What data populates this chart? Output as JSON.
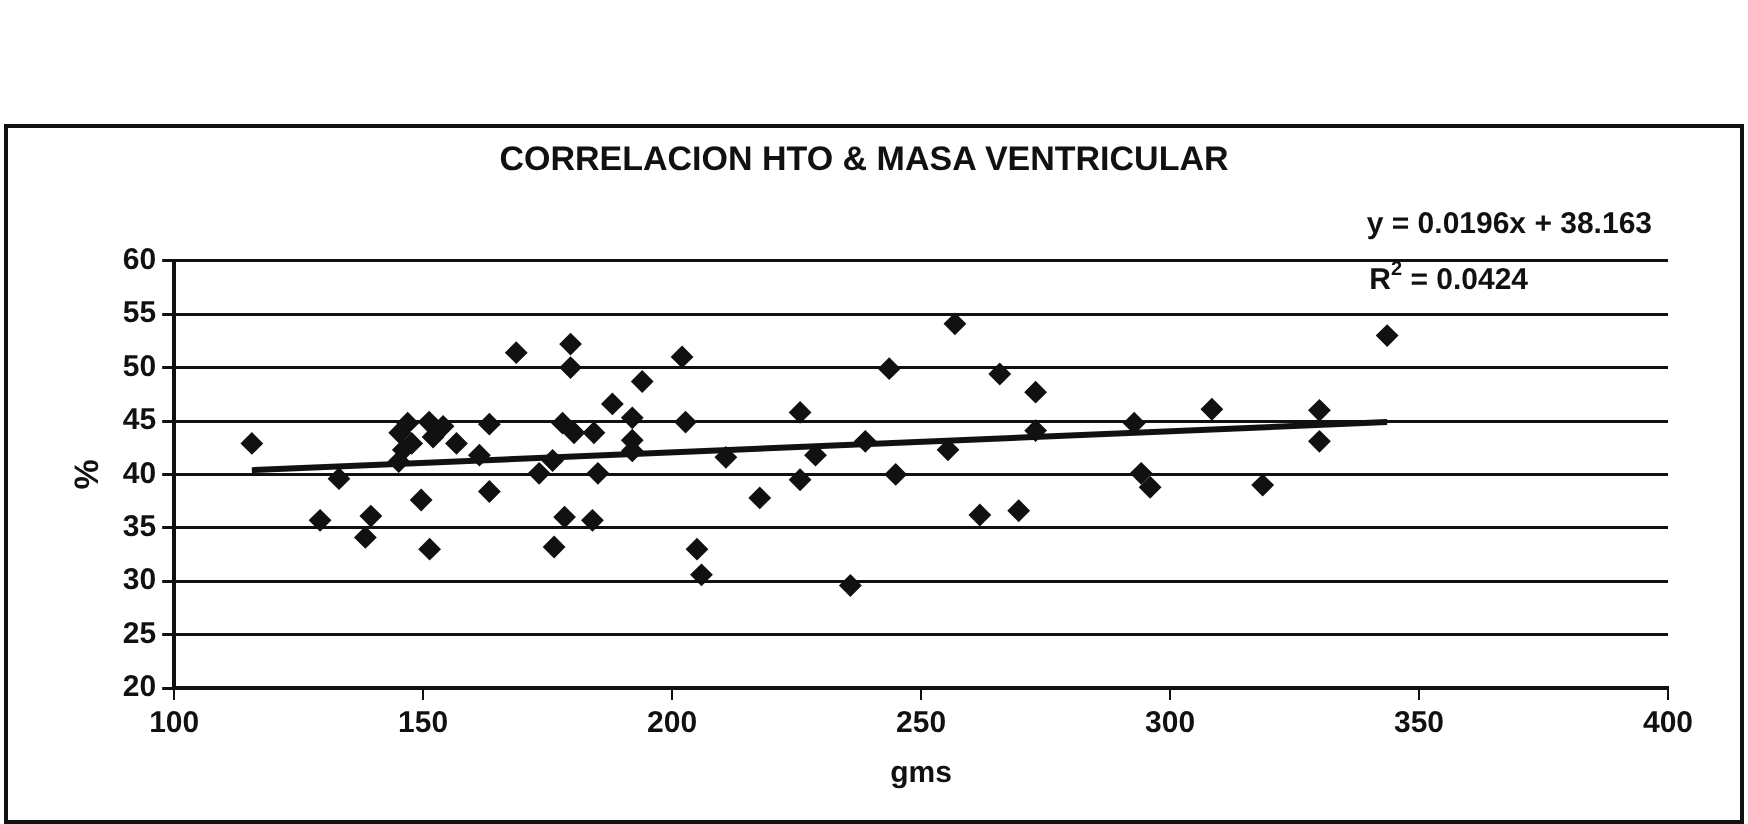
{
  "chart_data": {
    "type": "scatter",
    "title": "CORRELACION HTO & MASA VENTRICULAR",
    "xlabel": "gms",
    "ylabel": "%",
    "annotations": [
      "y = 0.0196x + 38.163",
      "R$^{2}$ = 0.0424"
    ],
    "xlim": [
      100,
      400
    ],
    "xticks": [
      100,
      150,
      200,
      250,
      300,
      350,
      400
    ],
    "ylim": [
      20,
      60
    ],
    "yticks": [
      20,
      25,
      30,
      35,
      40,
      45,
      50,
      55,
      60
    ],
    "grid": "y",
    "legend": false,
    "marker": "diamond",
    "series": [
      {
        "color": "#111111",
        "x": [
          115.6,
          129.3,
          133.1,
          138.4,
          139.5,
          145.3,
          146.9,
          146,
          145.1,
          147.7,
          149.6,
          151.3,
          151.2,
          152,
          154,
          156.7,
          161.3,
          163.3,
          163.3,
          168.7,
          173.3,
          176,
          176.3,
          178.4,
          178,
          179.6,
          179.6,
          180.3,
          184,
          184.3,
          185.1,
          188,
          192,
          192,
          192,
          194,
          202,
          202.7,
          205,
          205.9,
          210.8,
          217.6,
          225.7,
          225.7,
          228.8,
          235.8,
          238.8,
          243.6,
          244.9,
          255.4,
          256.8,
          261.8,
          265.8,
          269.6,
          273,
          273,
          292.8,
          294.2,
          296,
          308.4,
          318.6,
          330,
          330,
          343.6
        ],
        "values": [
          42.9,
          35.7,
          39.6,
          34.1,
          36.1,
          43.9,
          44.8,
          42.3,
          41.2,
          42.9,
          37.6,
          33,
          44.9,
          43.5,
          44.5,
          42.9,
          41.8,
          44.7,
          38.4,
          51.4,
          40.1,
          41.3,
          33.2,
          36,
          44.8,
          52.2,
          50,
          43.9,
          35.7,
          43.9,
          40.1,
          46.6,
          45.3,
          43.2,
          42.2,
          48.7,
          51,
          44.9,
          33,
          30.6,
          41.6,
          37.8,
          45.8,
          39.5,
          41.8,
          29.6,
          43.1,
          49.9,
          40,
          42.3,
          54.1,
          36.2,
          49.4,
          36.6,
          47.7,
          44.1,
          44.8,
          40.1,
          38.8,
          46.1,
          39,
          46,
          43.1,
          53
        ]
      },
      {
        "type": "line",
        "color": "#111111",
        "marker": "none",
        "line_style": "solid",
        "x": [
          115.6,
          343.6
        ],
        "values": [
          40.4,
          44.9
        ]
      }
    ]
  }
}
